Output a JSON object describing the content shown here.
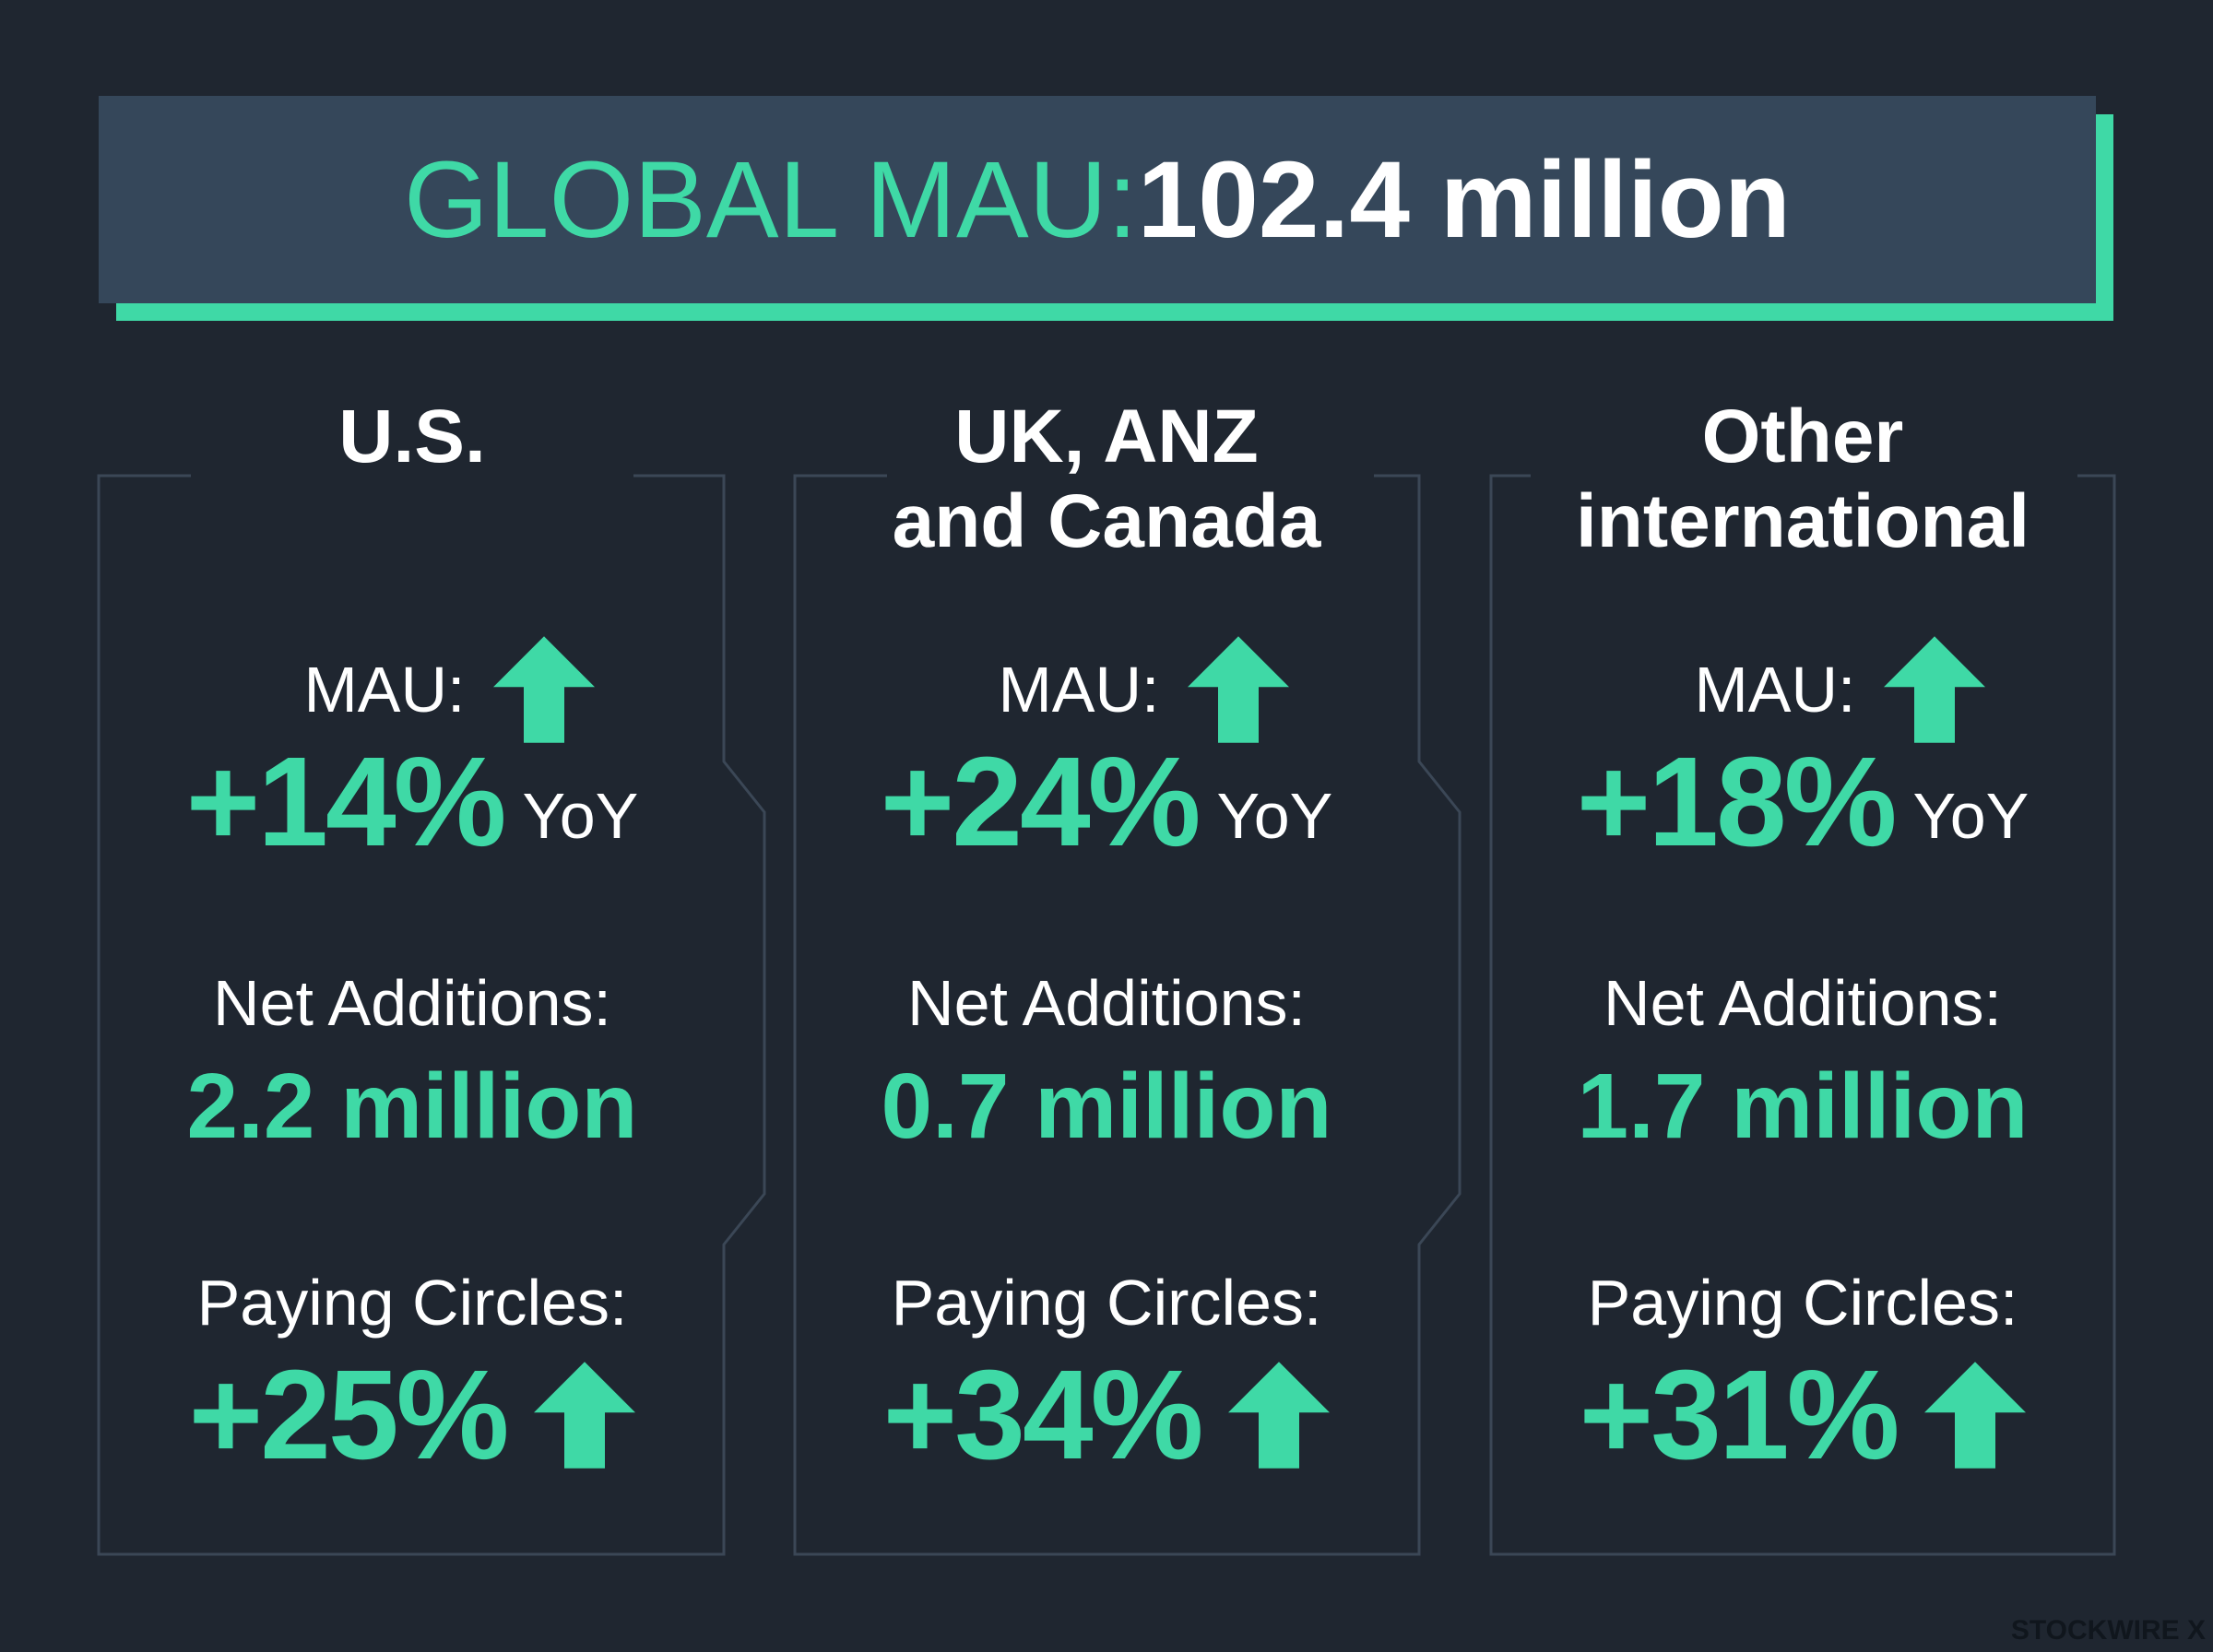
{
  "header": {
    "label": "GLOBAL MAU:",
    "value": "102.4 million"
  },
  "regions": [
    {
      "name": [
        "U.S."
      ],
      "mau_label": "MAU:",
      "mau_value": "+14%",
      "mau_suffix": "YoY",
      "net_label": "Net Additions:",
      "net_value": "2.2 million",
      "paying_label": "Paying Circles:",
      "paying_value": "+25%"
    },
    {
      "name": [
        "UK, ANZ",
        "and Canada"
      ],
      "mau_label": "MAU:",
      "mau_value": "+24%",
      "mau_suffix": "YoY",
      "net_label": "Net Additions:",
      "net_value": "0.7 million",
      "paying_label": "Paying Circles:",
      "paying_value": "+34%"
    },
    {
      "name": [
        "Other",
        "international"
      ],
      "mau_label": "MAU:",
      "mau_value": "+18%",
      "mau_suffix": "YoY",
      "net_label": "Net Additions:",
      "net_value": "1.7 million",
      "paying_label": "Paying Circles:",
      "paying_value": "+31%"
    }
  ],
  "watermark": "STOCKWIRE X"
}
